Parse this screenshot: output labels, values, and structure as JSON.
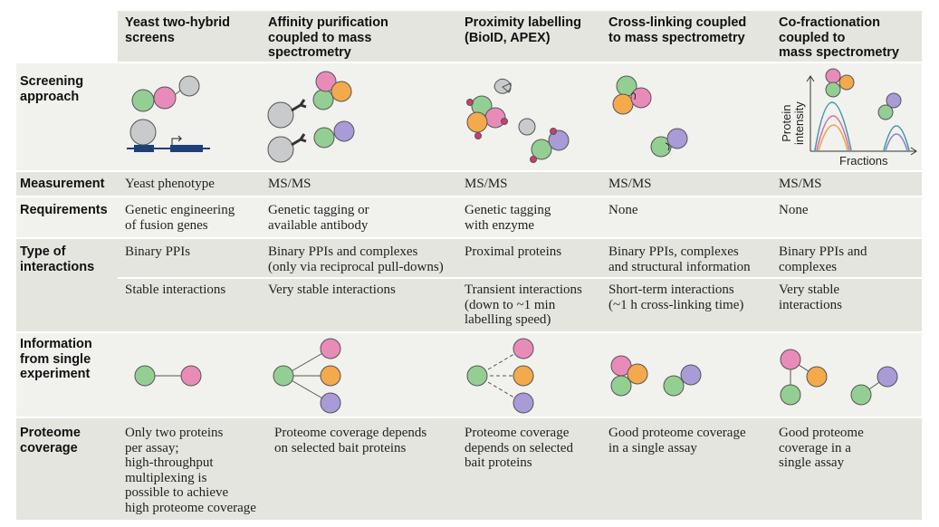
{
  "columns": [
    "Yeast two-hybrid\nscreens",
    "Affinity purification\ncoupled to mass\nspectrometry",
    "Proximity labelling\n(BioID, APEX)",
    "Cross-linking coupled\nto mass spectrometry",
    "Co-fractionation\ncoupled to\nmass spectrometry"
  ],
  "screening": {
    "label": "Screening\napproach",
    "y_axis_label": "Protein\nintensity",
    "x_axis_label": "Fractions"
  },
  "measurement": {
    "label": "Measurement",
    "cells": [
      "Yeast phenotype",
      "MS/MS",
      "MS/MS",
      "MS/MS",
      "MS/MS"
    ]
  },
  "requirements": {
    "label": "Requirements",
    "cells": [
      "Genetic engineering\nof fusion genes",
      "Genetic tagging or\navailable antibody",
      "Genetic tagging\nwith  enzyme",
      "None",
      "None"
    ]
  },
  "interactions": {
    "label": "Type of\ninteractions",
    "cells": [
      "Binary PPIs",
      "Binary PPIs and complexes\n(only via reciprocal pull-downs)",
      "Proximal proteins",
      "Binary PPIs, complexes\nand structural information",
      "Binary PPIs and\ncomplexes"
    ],
    "stability": [
      "Stable interactions",
      "Very stable interactions",
      "Transient interactions\n(down  to ~1 min\nlabelling speed)",
      "Short-term interactions\n(~1 h cross-linking time)",
      "Very stable\ninteractions"
    ]
  },
  "information": {
    "label": "Information\nfrom single\nexperiment"
  },
  "coverage": {
    "label": "Proteome\ncoverage",
    "cells": [
      "Only two proteins\nper assay;\nhigh-throughput\nmultiplexing is\npossible to achieve\nhigh proteome coverage",
      "Proteome coverage depends\non selected bait proteins",
      "Proteome coverage\ndepends  on selected\nbait proteins",
      "Good proteome coverage\nin a single assay",
      "Good proteome\ncoverage in a\nsingle assay"
    ]
  }
}
